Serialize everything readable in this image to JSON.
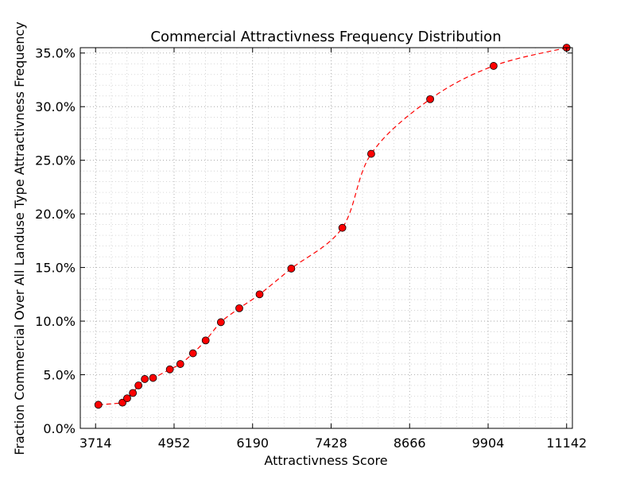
{
  "chart_data": {
    "type": "line",
    "title": "Commercial Attractivness Frequency Distribution",
    "xlabel": "Attractivness Score",
    "ylabel": "Fraction Commercial Over All Landuse Type Attractivness Frequency",
    "xlim": [
      3473,
      11233
    ],
    "ylim": [
      0.0,
      35.5
    ],
    "x_ticks": [
      3714,
      4952,
      6190,
      7428,
      8666,
      9904,
      11142
    ],
    "x_tick_labels": [
      "3714",
      "4952",
      "6190",
      "7428",
      "8666",
      "9904",
      "11142"
    ],
    "y_ticks": [
      0,
      5,
      10,
      15,
      20,
      25,
      30,
      35
    ],
    "y_tick_labels": [
      "0.0%",
      "5.0%",
      "10.0%",
      "15.0%",
      "20.0%",
      "25.0%",
      "30.0%",
      "35.0%"
    ],
    "grid": true,
    "legend": "none",
    "series": [
      {
        "x": [
          3758,
          4138,
          4212,
          4302,
          4390,
          4490,
          4620,
          4885,
          5050,
          5250,
          5450,
          5690,
          5980,
          6300,
          6800,
          7605,
          8060,
          8990,
          9990,
          11142
        ],
        "y": [
          2.2,
          2.4,
          2.8,
          3.3,
          4.0,
          4.6,
          4.7,
          5.5,
          6.0,
          7.0,
          8.2,
          9.9,
          11.2,
          12.5,
          14.9,
          18.7,
          25.6,
          30.7,
          33.8,
          35.5
        ],
        "line_color": "#ff0000",
        "line_style": "dashed",
        "marker": "circle",
        "marker_color": "#ff0000"
      }
    ]
  }
}
